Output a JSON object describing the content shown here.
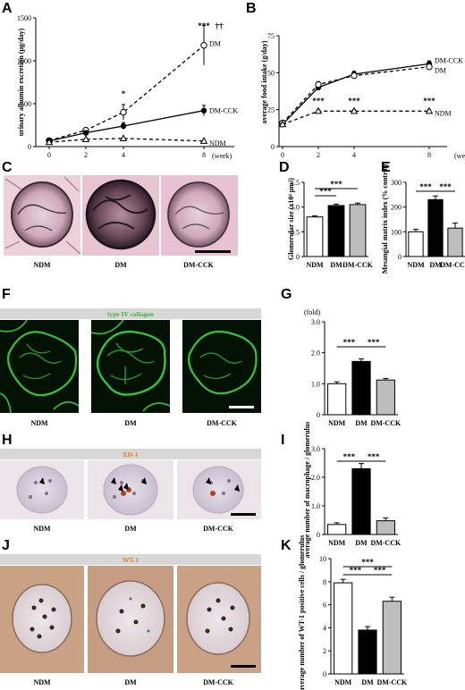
{
  "panels": {
    "A": "A",
    "B": "B",
    "C": "C",
    "D": "D",
    "E": "E",
    "F": "F",
    "G": "G",
    "H": "H",
    "I": "I",
    "J": "J",
    "K": "K"
  },
  "groups": {
    "ndm": "NDM",
    "dm": "DM",
    "dmcck": "DM-CCK"
  },
  "stains": {
    "F": "type IV collagen",
    "H": "ED-1",
    "J": "WT-1"
  },
  "week_label": "(week)",
  "fold_label": "(fold)",
  "colors": {
    "pas_bg": "#e9c9d4",
    "collagen_bg": "#041204",
    "collagen_line": "#37c23a",
    "ihc_bg": "#e8e2e6",
    "wt1_bg": "#c9a184",
    "banner": "#d7d7d7",
    "stain_text": "#e07e1c",
    "collagen_text": "#33bb33"
  },
  "chart_data": [
    {
      "id": "A",
      "type": "line",
      "ylabel": "urinary albumin excretion (μg/day)",
      "x": [
        0,
        2,
        4,
        8
      ],
      "x_ticks": [
        "0",
        "2",
        "4",
        "8"
      ],
      "y_ticks": [
        "0",
        "500",
        "1000",
        "1500"
      ],
      "ylim": [
        0,
        1500
      ],
      "series": [
        {
          "name": "DM",
          "values": [
            70,
            190,
            400,
            1180
          ],
          "errors": [
            15,
            30,
            90,
            230
          ],
          "marker": "open-circle",
          "dash": true
        },
        {
          "name": "DM-CCK",
          "values": [
            65,
            160,
            240,
            420
          ],
          "errors": [
            15,
            25,
            40,
            60
          ],
          "marker": "filled-circle",
          "dash": false
        },
        {
          "name": "NDM",
          "values": [
            50,
            85,
            95,
            65
          ],
          "errors": [
            8,
            10,
            12,
            10
          ],
          "marker": "open-triangle",
          "dash": true
        }
      ],
      "annotations": [
        "***",
        "††",
        "*"
      ]
    },
    {
      "id": "B",
      "type": "line",
      "ylabel": "average food intake (g/day)",
      "x": [
        0,
        2,
        4,
        8
      ],
      "x_ticks": [
        "0",
        "2",
        "4",
        "8"
      ],
      "y_ticks": [
        "0",
        "25",
        "50",
        "75"
      ],
      "ylim": [
        0,
        75
      ],
      "series": [
        {
          "name": "DM-CCK",
          "values": [
            15,
            40,
            49,
            56
          ],
          "errors": [
            1,
            2,
            2,
            2
          ],
          "marker": "filled-circle",
          "dash": false
        },
        {
          "name": "DM",
          "values": [
            16,
            42,
            48,
            54
          ],
          "errors": [
            1,
            2,
            2,
            2
          ],
          "marker": "open-circle",
          "dash": true
        },
        {
          "name": "NDM",
          "values": [
            15,
            24,
            24,
            24
          ],
          "errors": [
            1,
            1,
            1,
            1
          ],
          "marker": "open-triangle",
          "dash": true
        }
      ],
      "annotations": [
        "***",
        "***",
        "***"
      ]
    },
    {
      "id": "D",
      "type": "bar",
      "ylabel": "Glomerular size (x10⁴ μm²)",
      "categories": [
        "NDM",
        "DM",
        "DM-CCK"
      ],
      "values": [
        0.8,
        1.03,
        1.05
      ],
      "errors": [
        0.02,
        0.03,
        0.03
      ],
      "y_ticks": [
        "0",
        "0.5",
        "1.0",
        "1.5"
      ],
      "ylim": [
        0,
        1.5
      ],
      "annotations": [
        "***",
        "***"
      ]
    },
    {
      "id": "E",
      "type": "bar",
      "ylabel": "Mesangial matrix index (% control)",
      "categories": [
        "NDM",
        "DM",
        "DM-CCK"
      ],
      "values": [
        100,
        230,
        115
      ],
      "errors": [
        10,
        15,
        20
      ],
      "y_ticks": [
        "0",
        "100",
        "200",
        "300"
      ],
      "ylim": [
        0,
        300
      ],
      "annotations": [
        "***",
        "***"
      ]
    },
    {
      "id": "G",
      "type": "bar",
      "ylabel": "",
      "categories": [
        "NDM",
        "DM",
        "DM-CCK"
      ],
      "values": [
        1.0,
        1.72,
        1.12
      ],
      "errors": [
        0.06,
        0.08,
        0.05
      ],
      "y_ticks": [
        "0",
        "1.0",
        "2.0",
        "3.0"
      ],
      "ylim": [
        0,
        3
      ],
      "annotations": [
        "***",
        "***"
      ]
    },
    {
      "id": "I",
      "type": "bar",
      "ylabel": "average number of macrophage / glomerulus",
      "categories": [
        "NDM",
        "DM",
        "DM-CCK"
      ],
      "values": [
        0.35,
        2.3,
        0.48
      ],
      "errors": [
        0.06,
        0.18,
        0.1
      ],
      "y_ticks": [
        "0",
        "1.0",
        "2.0",
        "3.0"
      ],
      "ylim": [
        0,
        3
      ],
      "annotations": [
        "***",
        "***"
      ]
    },
    {
      "id": "K",
      "type": "bar",
      "ylabel": "average number of WT-1 positive cells / glomerulus",
      "categories": [
        "NDM",
        "DM",
        "DM-CCK"
      ],
      "values": [
        7.9,
        3.8,
        6.3
      ],
      "errors": [
        0.3,
        0.3,
        0.35
      ],
      "y_ticks": [
        "0",
        "2",
        "4",
        "6",
        "8",
        "10"
      ],
      "ylim": [
        0,
        10
      ],
      "annotations": [
        "***",
        "***",
        "***"
      ]
    }
  ]
}
